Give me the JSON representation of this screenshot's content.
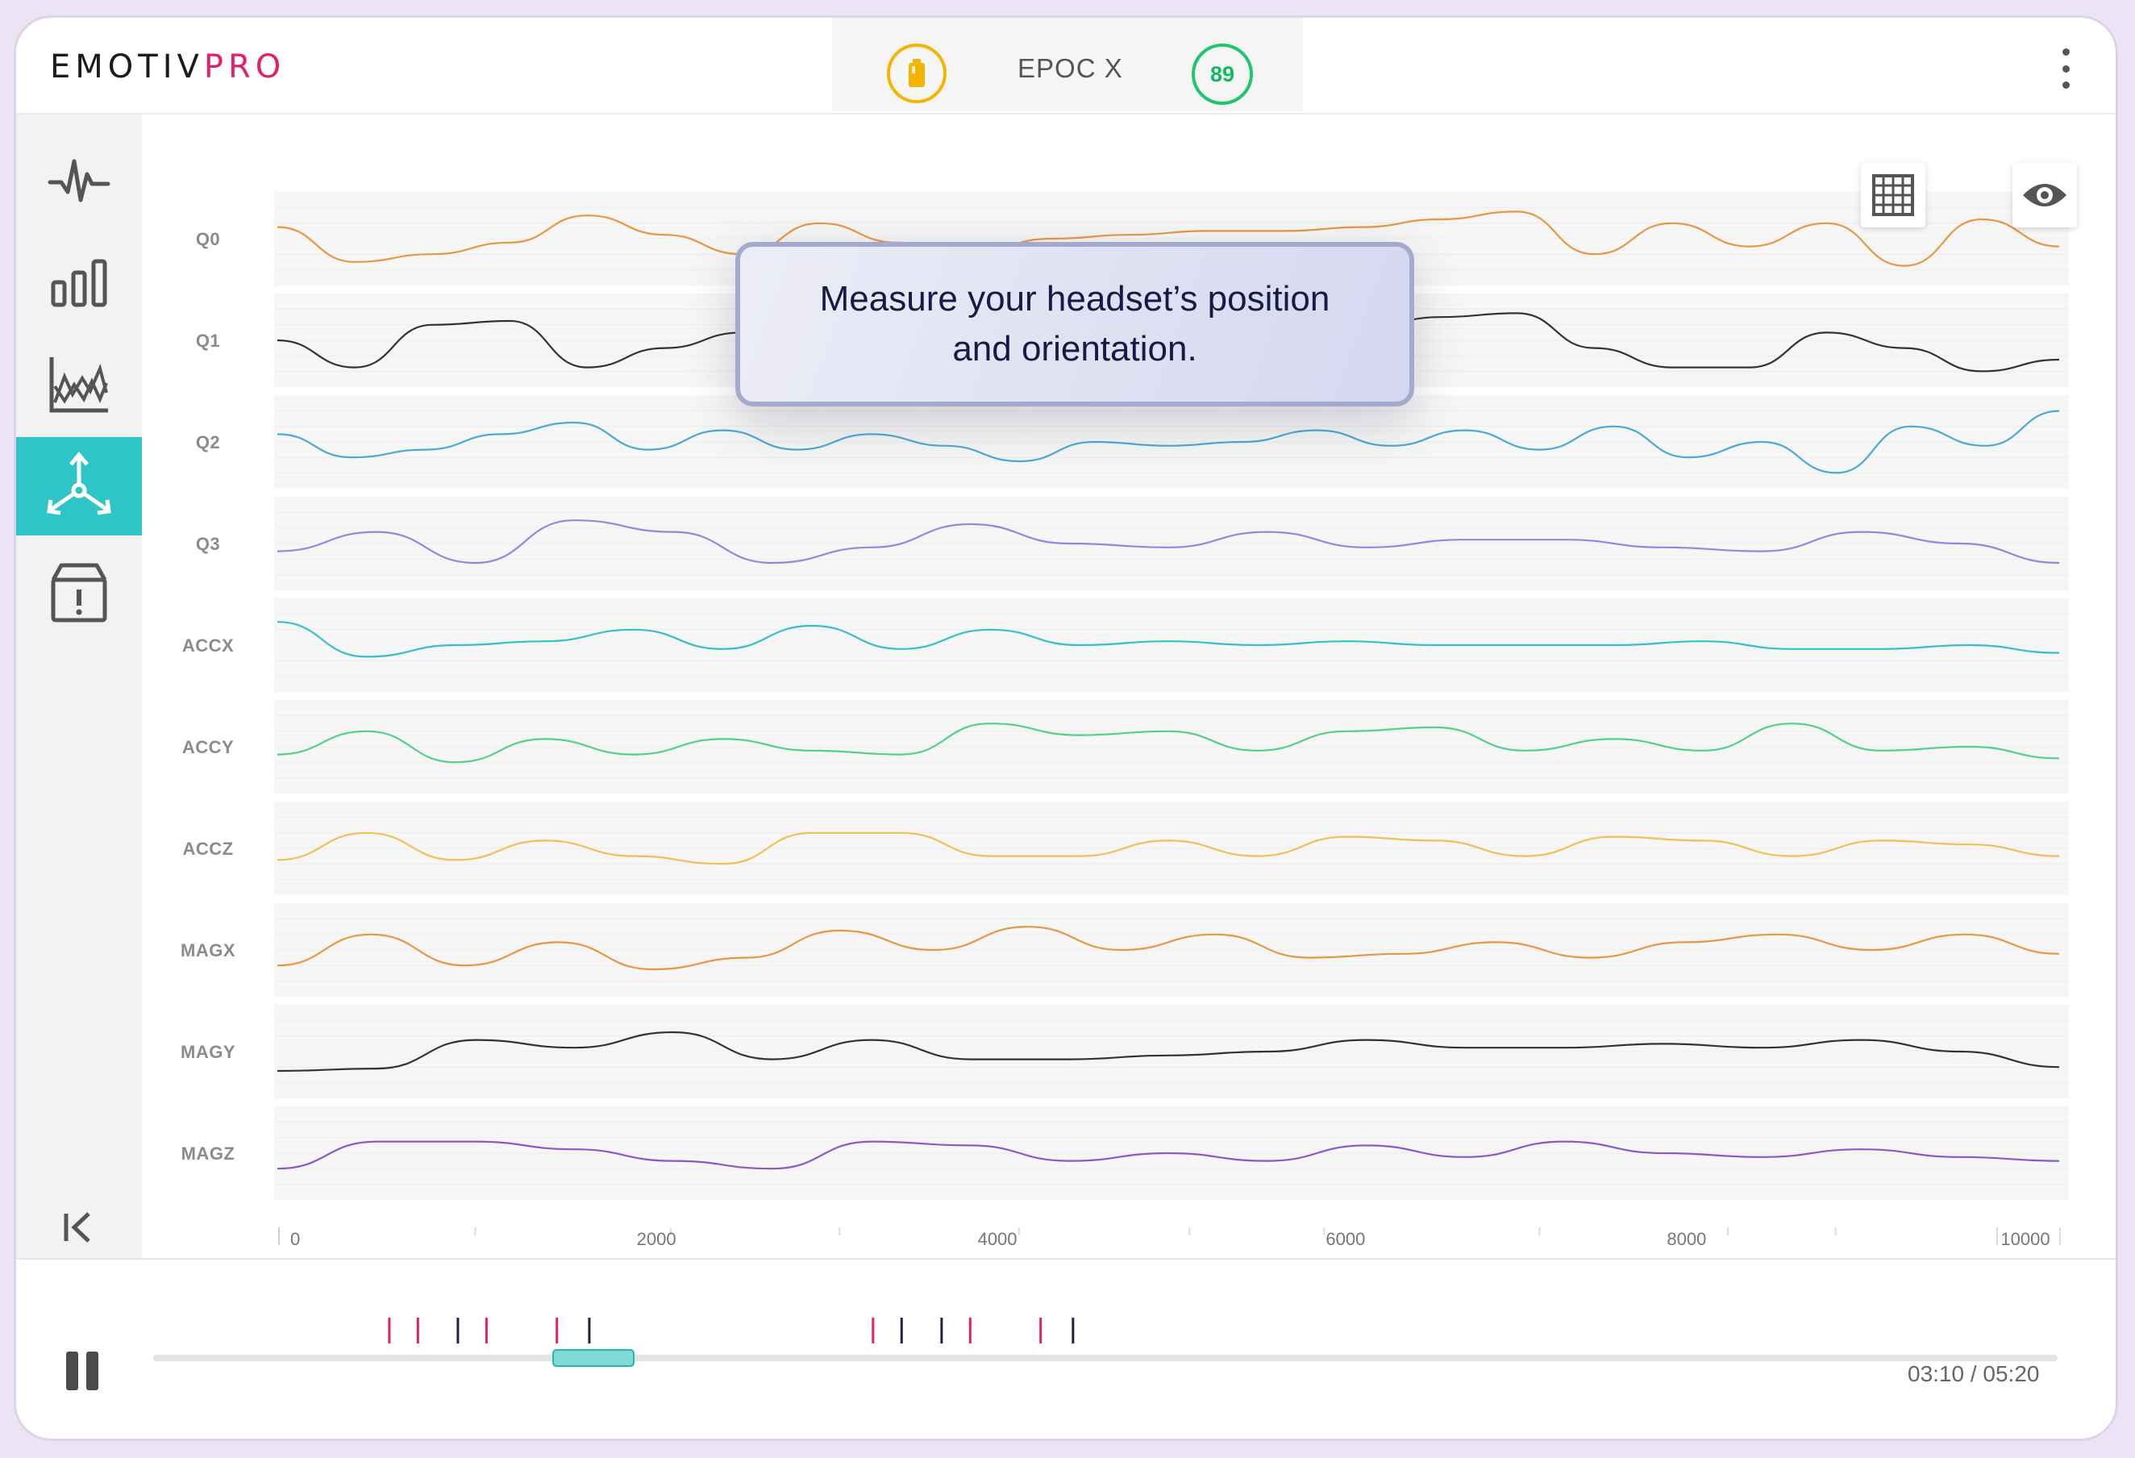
{
  "header": {
    "logo_left": "EMOTIV",
    "logo_right": "PRO",
    "device_name": "EPOC X",
    "contact_quality": "89",
    "battery_color": "#f4b500",
    "quality_color": "#1ec66b"
  },
  "sidebar": {
    "items": [
      {
        "name": "raw-data",
        "icon": "waveform-icon"
      },
      {
        "name": "band-power",
        "icon": "bar-chart-icon"
      },
      {
        "name": "performance-metrics",
        "icon": "line-chart-icon"
      },
      {
        "name": "motion",
        "icon": "axes-3d-icon",
        "active": true
      },
      {
        "name": "events",
        "icon": "box-alert-icon"
      }
    ],
    "active_color": "#2ec5c9"
  },
  "tooltip": {
    "message": "Measure your headset’s position and orientation."
  },
  "chart_data": {
    "type": "line",
    "x_ticks": [
      "0",
      "2000",
      "4000",
      "6000",
      "8000",
      "10000"
    ],
    "xlim": [
      0,
      10000
    ],
    "grid": true,
    "series": [
      {
        "name": "Q0",
        "color": "#e8973f",
        "values": [
          0.35,
          0.8,
          0.7,
          0.55,
          0.2,
          0.45,
          0.7,
          0.3,
          0.55,
          0.65,
          0.5,
          0.45,
          0.4,
          0.4,
          0.35,
          0.25,
          0.15,
          0.7,
          0.3,
          0.6,
          0.3,
          0.85,
          0.25,
          0.6
        ]
      },
      {
        "name": "Q1",
        "color": "#333333",
        "values": [
          0.5,
          0.85,
          0.3,
          0.25,
          0.85,
          0.6,
          0.4,
          0.5,
          0.3,
          0.5,
          0.45,
          0.5,
          0.5,
          0.45,
          0.35,
          0.2,
          0.15,
          0.6,
          0.85,
          0.85,
          0.4,
          0.6,
          0.9,
          0.75
        ]
      },
      {
        "name": "Q2",
        "color": "#4aa9d6",
        "values": [
          0.4,
          0.7,
          0.6,
          0.4,
          0.25,
          0.6,
          0.35,
          0.6,
          0.4,
          0.55,
          0.75,
          0.5,
          0.55,
          0.5,
          0.35,
          0.55,
          0.35,
          0.6,
          0.3,
          0.7,
          0.5,
          0.9,
          0.3,
          0.55,
          0.1
        ]
      },
      {
        "name": "Q3",
        "color": "#9a83e0",
        "values": [
          0.6,
          0.35,
          0.75,
          0.2,
          0.35,
          0.75,
          0.55,
          0.25,
          0.5,
          0.55,
          0.35,
          0.55,
          0.45,
          0.45,
          0.55,
          0.6,
          0.35,
          0.5,
          0.75
        ]
      },
      {
        "name": "ACCX",
        "color": "#34bfc9",
        "values": [
          0.2,
          0.65,
          0.5,
          0.45,
          0.3,
          0.55,
          0.25,
          0.55,
          0.3,
          0.5,
          0.45,
          0.5,
          0.45,
          0.5,
          0.5,
          0.5,
          0.45,
          0.55,
          0.55,
          0.5,
          0.6
        ]
      },
      {
        "name": "ACCY",
        "color": "#4fd18c",
        "values": [
          0.6,
          0.3,
          0.7,
          0.4,
          0.6,
          0.4,
          0.55,
          0.6,
          0.2,
          0.35,
          0.3,
          0.55,
          0.3,
          0.25,
          0.55,
          0.4,
          0.55,
          0.2,
          0.55,
          0.5,
          0.65
        ]
      },
      {
        "name": "ACCZ",
        "color": "#eec152",
        "values": [
          0.65,
          0.3,
          0.65,
          0.4,
          0.6,
          0.7,
          0.3,
          0.3,
          0.6,
          0.6,
          0.4,
          0.6,
          0.35,
          0.4,
          0.6,
          0.35,
          0.4,
          0.6,
          0.4,
          0.45,
          0.6
        ]
      },
      {
        "name": "MAGX",
        "color": "#e8973f",
        "values": [
          0.7,
          0.3,
          0.7,
          0.4,
          0.75,
          0.6,
          0.25,
          0.5,
          0.2,
          0.5,
          0.3,
          0.6,
          0.55,
          0.4,
          0.6,
          0.4,
          0.3,
          0.5,
          0.3,
          0.55
        ]
      },
      {
        "name": "MAGY",
        "color": "#333333",
        "values": [
          0.75,
          0.72,
          0.35,
          0.45,
          0.25,
          0.6,
          0.35,
          0.6,
          0.6,
          0.55,
          0.5,
          0.35,
          0.45,
          0.45,
          0.4,
          0.45,
          0.35,
          0.5,
          0.7
        ]
      },
      {
        "name": "MAGZ",
        "color": "#8a58c9",
        "values": [
          0.7,
          0.35,
          0.35,
          0.45,
          0.6,
          0.7,
          0.35,
          0.4,
          0.6,
          0.5,
          0.6,
          0.4,
          0.55,
          0.35,
          0.5,
          0.55,
          0.45,
          0.55,
          0.6
        ]
      }
    ]
  },
  "footer": {
    "time": "03:10 / 05:20",
    "progress": 0.21,
    "markers": [
      {
        "pos": 0.124,
        "color": "#e0226a"
      },
      {
        "pos": 0.139,
        "color": "#e0226a"
      },
      {
        "pos": 0.16,
        "color": "#222244"
      },
      {
        "pos": 0.175,
        "color": "#e0226a"
      },
      {
        "pos": 0.212,
        "color": "#e0226a"
      },
      {
        "pos": 0.229,
        "color": "#222244"
      },
      {
        "pos": 0.378,
        "color": "#e0226a"
      },
      {
        "pos": 0.393,
        "color": "#222244"
      },
      {
        "pos": 0.414,
        "color": "#222244"
      },
      {
        "pos": 0.429,
        "color": "#e0226a"
      },
      {
        "pos": 0.466,
        "color": "#e0226a"
      },
      {
        "pos": 0.483,
        "color": "#222244"
      }
    ]
  }
}
